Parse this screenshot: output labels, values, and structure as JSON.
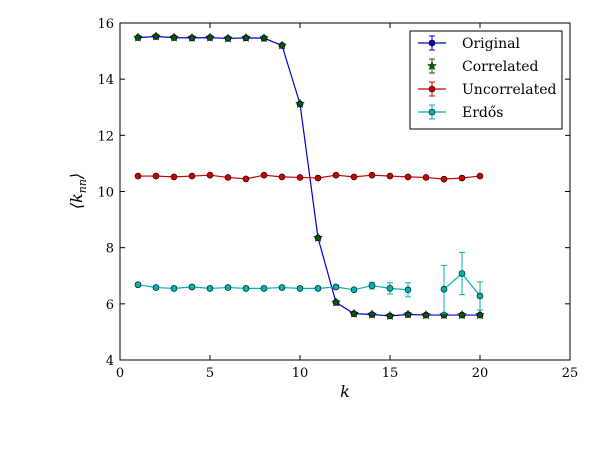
{
  "chart_data": {
    "type": "line",
    "xlabel": "k",
    "ylabel": "⟨k_nn⟩",
    "ylabel_main": "⟨k",
    "ylabel_sub": "nn",
    "ylabel_close": "⟩",
    "xlim": [
      0,
      25
    ],
    "ylim": [
      4,
      16
    ],
    "xticks": [
      0,
      5,
      10,
      15,
      20,
      25
    ],
    "yticks": [
      4,
      6,
      8,
      10,
      12,
      14,
      16
    ],
    "grid": false,
    "legend_position": "top-right",
    "series": [
      {
        "name": "Original",
        "color": "#0000cc",
        "marker": "circle",
        "line": true,
        "x": [
          1,
          2,
          3,
          4,
          5,
          6,
          7,
          8,
          9,
          10,
          11,
          12,
          13,
          14,
          15,
          16,
          17,
          18,
          19,
          20
        ],
        "y": [
          15.48,
          15.52,
          15.48,
          15.47,
          15.48,
          15.45,
          15.47,
          15.46,
          15.2,
          13.12,
          8.35,
          6.05,
          5.65,
          5.62,
          5.57,
          5.62,
          5.6,
          5.6,
          5.6,
          5.6
        ]
      },
      {
        "name": "Correlated",
        "color": "#006400",
        "marker": "star",
        "line": false,
        "x": [
          1,
          2,
          3,
          4,
          5,
          6,
          7,
          8,
          9,
          10,
          11,
          12,
          13,
          14,
          15,
          16,
          17,
          18,
          19,
          20
        ],
        "y": [
          15.48,
          15.52,
          15.48,
          15.47,
          15.48,
          15.45,
          15.47,
          15.46,
          15.2,
          13.12,
          8.35,
          6.05,
          5.65,
          5.62,
          5.57,
          5.62,
          5.6,
          5.6,
          5.6,
          5.6
        ]
      },
      {
        "name": "Uncorrelated",
        "color": "#cc0000",
        "marker": "circle",
        "line": true,
        "x": [
          1,
          2,
          3,
          4,
          5,
          6,
          7,
          8,
          9,
          10,
          11,
          12,
          13,
          14,
          15,
          16,
          17,
          18,
          19,
          20
        ],
        "y": [
          10.55,
          10.55,
          10.52,
          10.55,
          10.58,
          10.5,
          10.45,
          10.58,
          10.52,
          10.5,
          10.48,
          10.58,
          10.52,
          10.58,
          10.55,
          10.52,
          10.5,
          10.44,
          10.48,
          10.55
        ]
      },
      {
        "name": "Erdős",
        "color": "#00b3b3",
        "marker": "circle",
        "line": true,
        "x": [
          1,
          2,
          3,
          4,
          5,
          6,
          7,
          8,
          9,
          10,
          11,
          12,
          13,
          14,
          15,
          16,
          18,
          19,
          20
        ],
        "y": [
          6.68,
          6.58,
          6.55,
          6.6,
          6.55,
          6.58,
          6.55,
          6.55,
          6.58,
          6.55,
          6.55,
          6.6,
          6.5,
          6.65,
          6.55,
          6.5,
          6.52,
          7.08,
          6.28
        ],
        "err": [
          0.05,
          0.05,
          0.05,
          0.05,
          0.05,
          0.05,
          0.05,
          0.05,
          0.05,
          0.05,
          0.05,
          0.05,
          0.05,
          0.12,
          0.2,
          0.25,
          0.85,
          0.75,
          0.5
        ],
        "breaks_after_x": [
          16
        ]
      }
    ]
  }
}
